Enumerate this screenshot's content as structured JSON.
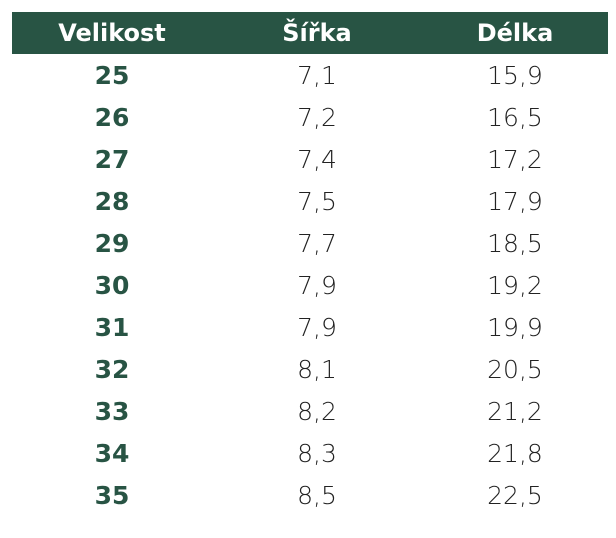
{
  "table": {
    "header": [
      "Velikost",
      "Šířka",
      "Délka"
    ],
    "rows": [
      [
        "25",
        "7,1",
        "15,9"
      ],
      [
        "26",
        "7,2",
        "16,5"
      ],
      [
        "27",
        "7,4",
        "17,2"
      ],
      [
        "28",
        "7,5",
        "17,9"
      ],
      [
        "29",
        "7,7",
        "18,5"
      ],
      [
        "30",
        "7,9",
        "19,2"
      ],
      [
        "31",
        "7,9",
        "19,9"
      ],
      [
        "32",
        "8,1",
        "20,5"
      ],
      [
        "33",
        "8,2",
        "21,2"
      ],
      [
        "34",
        "8,3",
        "21,8"
      ],
      [
        "35",
        "8,5",
        "22,5"
      ]
    ]
  }
}
